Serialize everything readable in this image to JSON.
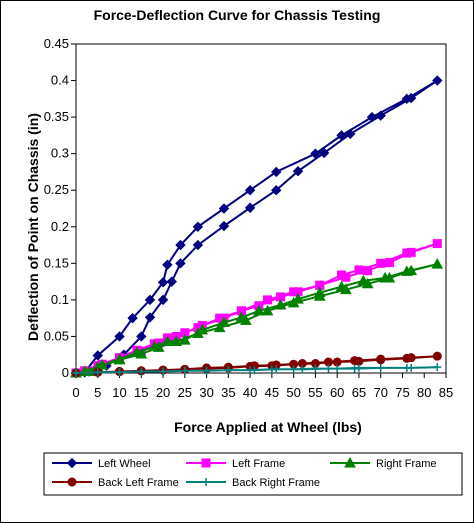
{
  "chart_data": {
    "type": "line",
    "title": "Force-Deflection Curve for Chassis Testing",
    "xlabel": "Force Applied at Wheel (lbs)",
    "ylabel": "Deflection of Point on Chassis (in)",
    "xlim": [
      0,
      85
    ],
    "ylim": [
      0,
      0.45
    ],
    "x_ticks": [
      "0",
      "5",
      "10",
      "15",
      "20",
      "25",
      "30",
      "35",
      "40",
      "45",
      "50",
      "55",
      "60",
      "65",
      "70",
      "75",
      "80",
      "85"
    ],
    "y_ticks": [
      "0",
      "0.05",
      "0.1",
      "0.15",
      "0.2",
      "0.25",
      "0.3",
      "0.35",
      "0.4",
      "0.45"
    ],
    "grid": false,
    "legend_position": "bottom",
    "series": [
      {
        "name": "Left Wheel",
        "color": "#000080",
        "marker": "diamond",
        "points": [
          [
            0,
            0
          ],
          [
            2,
            0.001
          ],
          [
            5,
            0.024
          ],
          [
            10,
            0.05
          ],
          [
            13,
            0.075
          ],
          [
            17,
            0.1
          ],
          [
            20,
            0.124
          ],
          [
            21,
            0.148
          ],
          [
            24,
            0.175
          ],
          [
            28,
            0.2
          ],
          [
            34,
            0.225
          ],
          [
            40,
            0.25
          ],
          [
            46,
            0.275
          ],
          [
            55,
            0.3
          ],
          [
            61,
            0.325
          ],
          [
            68,
            0.35
          ],
          [
            76,
            0.375
          ],
          [
            83,
            0.4
          ],
          [
            77,
            0.376
          ],
          [
            70,
            0.352
          ],
          [
            63,
            0.327
          ],
          [
            57,
            0.301
          ],
          [
            51,
            0.276
          ],
          [
            46,
            0.25
          ],
          [
            40,
            0.226
          ],
          [
            34,
            0.201
          ],
          [
            28,
            0.175
          ],
          [
            24,
            0.15
          ],
          [
            22,
            0.125
          ],
          [
            20,
            0.1
          ],
          [
            17,
            0.076
          ],
          [
            15,
            0.05
          ],
          [
            11,
            0.025
          ],
          [
            7,
            0.01
          ],
          [
            3,
            0.002
          ],
          [
            0,
            0
          ]
        ]
      },
      {
        "name": "Left Frame",
        "color": "#FF00FF",
        "marker": "square",
        "points": [
          [
            0,
            0
          ],
          [
            3,
            0.003
          ],
          [
            6,
            0.012
          ],
          [
            10,
            0.021
          ],
          [
            14,
            0.031
          ],
          [
            18,
            0.04
          ],
          [
            21,
            0.048
          ],
          [
            25,
            0.055
          ],
          [
            29,
            0.065
          ],
          [
            34,
            0.075
          ],
          [
            38,
            0.085
          ],
          [
            42,
            0.092
          ],
          [
            47,
            0.104
          ],
          [
            51,
            0.111
          ],
          [
            56,
            0.12
          ],
          [
            61,
            0.134
          ],
          [
            65,
            0.141
          ],
          [
            70,
            0.15
          ],
          [
            76,
            0.164
          ],
          [
            83,
            0.177
          ],
          [
            77,
            0.165
          ],
          [
            72,
            0.151
          ],
          [
            67,
            0.14
          ],
          [
            62,
            0.131
          ],
          [
            56,
            0.12
          ],
          [
            50,
            0.111
          ],
          [
            44,
            0.1
          ],
          [
            38,
            0.085
          ],
          [
            33,
            0.075
          ],
          [
            28,
            0.062
          ],
          [
            23,
            0.05
          ],
          [
            19,
            0.041
          ],
          [
            15,
            0.03
          ],
          [
            10,
            0.02
          ],
          [
            5,
            0.01
          ],
          [
            2,
            0.003
          ],
          [
            0,
            0
          ]
        ]
      },
      {
        "name": "Right Frame",
        "color": "#008000",
        "marker": "triangle",
        "points": [
          [
            0,
            0
          ],
          [
            3,
            0.002
          ],
          [
            6,
            0.011
          ],
          [
            10,
            0.019
          ],
          [
            14,
            0.028
          ],
          [
            18,
            0.036
          ],
          [
            21,
            0.043
          ],
          [
            25,
            0.045
          ],
          [
            29,
            0.059
          ],
          [
            34,
            0.069
          ],
          [
            38,
            0.076
          ],
          [
            42,
            0.085
          ],
          [
            47,
            0.093
          ],
          [
            51,
            0.101
          ],
          [
            56,
            0.11
          ],
          [
            61,
            0.118
          ],
          [
            66,
            0.126
          ],
          [
            71,
            0.13
          ],
          [
            76,
            0.139
          ],
          [
            83,
            0.149
          ],
          [
            77,
            0.14
          ],
          [
            72,
            0.13
          ],
          [
            67,
            0.122
          ],
          [
            62,
            0.114
          ],
          [
            56,
            0.105
          ],
          [
            50,
            0.096
          ],
          [
            44,
            0.085
          ],
          [
            39,
            0.072
          ],
          [
            33,
            0.062
          ],
          [
            28,
            0.054
          ],
          [
            23,
            0.043
          ],
          [
            19,
            0.035
          ],
          [
            15,
            0.026
          ],
          [
            10,
            0.018
          ],
          [
            5,
            0.008
          ],
          [
            2,
            0.002
          ],
          [
            0,
            0
          ]
        ]
      },
      {
        "name": "Back Left Frame",
        "color": "#800000",
        "marker": "circle",
        "points": [
          [
            0,
            0
          ],
          [
            5,
            0.001
          ],
          [
            10,
            0.002
          ],
          [
            15,
            0.003
          ],
          [
            20,
            0.004
          ],
          [
            25,
            0.005
          ],
          [
            30,
            0.006
          ],
          [
            35,
            0.007
          ],
          [
            40,
            0.009
          ],
          [
            45,
            0.01
          ],
          [
            50,
            0.012
          ],
          [
            55,
            0.013
          ],
          [
            60,
            0.015
          ],
          [
            65,
            0.016
          ],
          [
            70,
            0.018
          ],
          [
            76,
            0.02
          ],
          [
            83,
            0.023
          ],
          [
            77,
            0.021
          ],
          [
            70,
            0.019
          ],
          [
            64,
            0.017
          ],
          [
            58,
            0.015
          ],
          [
            52,
            0.013
          ],
          [
            46,
            0.011
          ],
          [
            41,
            0.01
          ],
          [
            35,
            0.008
          ],
          [
            30,
            0.007
          ],
          [
            25,
            0.005
          ],
          [
            20,
            0.004
          ],
          [
            15,
            0.003
          ],
          [
            10,
            0.002
          ],
          [
            5,
            0.001
          ],
          [
            0,
            0
          ]
        ]
      },
      {
        "name": "Back Right Frame",
        "color": "#008080",
        "marker": "plus",
        "points": [
          [
            0,
            0
          ],
          [
            5,
            0.001
          ],
          [
            10,
            0.001
          ],
          [
            15,
            0.002
          ],
          [
            20,
            0.002
          ],
          [
            25,
            0.003
          ],
          [
            30,
            0.003
          ],
          [
            35,
            0.004
          ],
          [
            40,
            0.004
          ],
          [
            45,
            0.005
          ],
          [
            50,
            0.005
          ],
          [
            55,
            0.006
          ],
          [
            60,
            0.006
          ],
          [
            65,
            0.007
          ],
          [
            70,
            0.007
          ],
          [
            76,
            0.007
          ],
          [
            83,
            0.008
          ],
          [
            77,
            0.007
          ],
          [
            70,
            0.007
          ],
          [
            64,
            0.006
          ],
          [
            58,
            0.006
          ],
          [
            52,
            0.005
          ],
          [
            46,
            0.005
          ],
          [
            41,
            0.004
          ],
          [
            35,
            0.004
          ],
          [
            30,
            0.003
          ],
          [
            25,
            0.003
          ],
          [
            20,
            0.002
          ],
          [
            15,
            0.002
          ],
          [
            10,
            0.001
          ],
          [
            5,
            0.001
          ],
          [
            0,
            0
          ]
        ]
      }
    ]
  }
}
